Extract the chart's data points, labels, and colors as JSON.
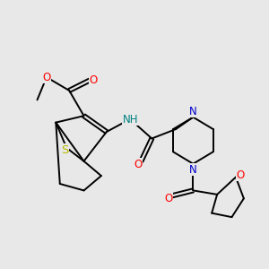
{
  "bg_color": "#e8e8e8",
  "bond_color": "#000000",
  "bond_width": 1.4,
  "atom_colors": {
    "S": "#b8b800",
    "O": "#ff0000",
    "N": "#0000cc",
    "H": "#008080",
    "C": "#000000"
  },
  "font_size": 8.5,
  "figsize": [
    3.0,
    3.0
  ],
  "dpi": 100
}
